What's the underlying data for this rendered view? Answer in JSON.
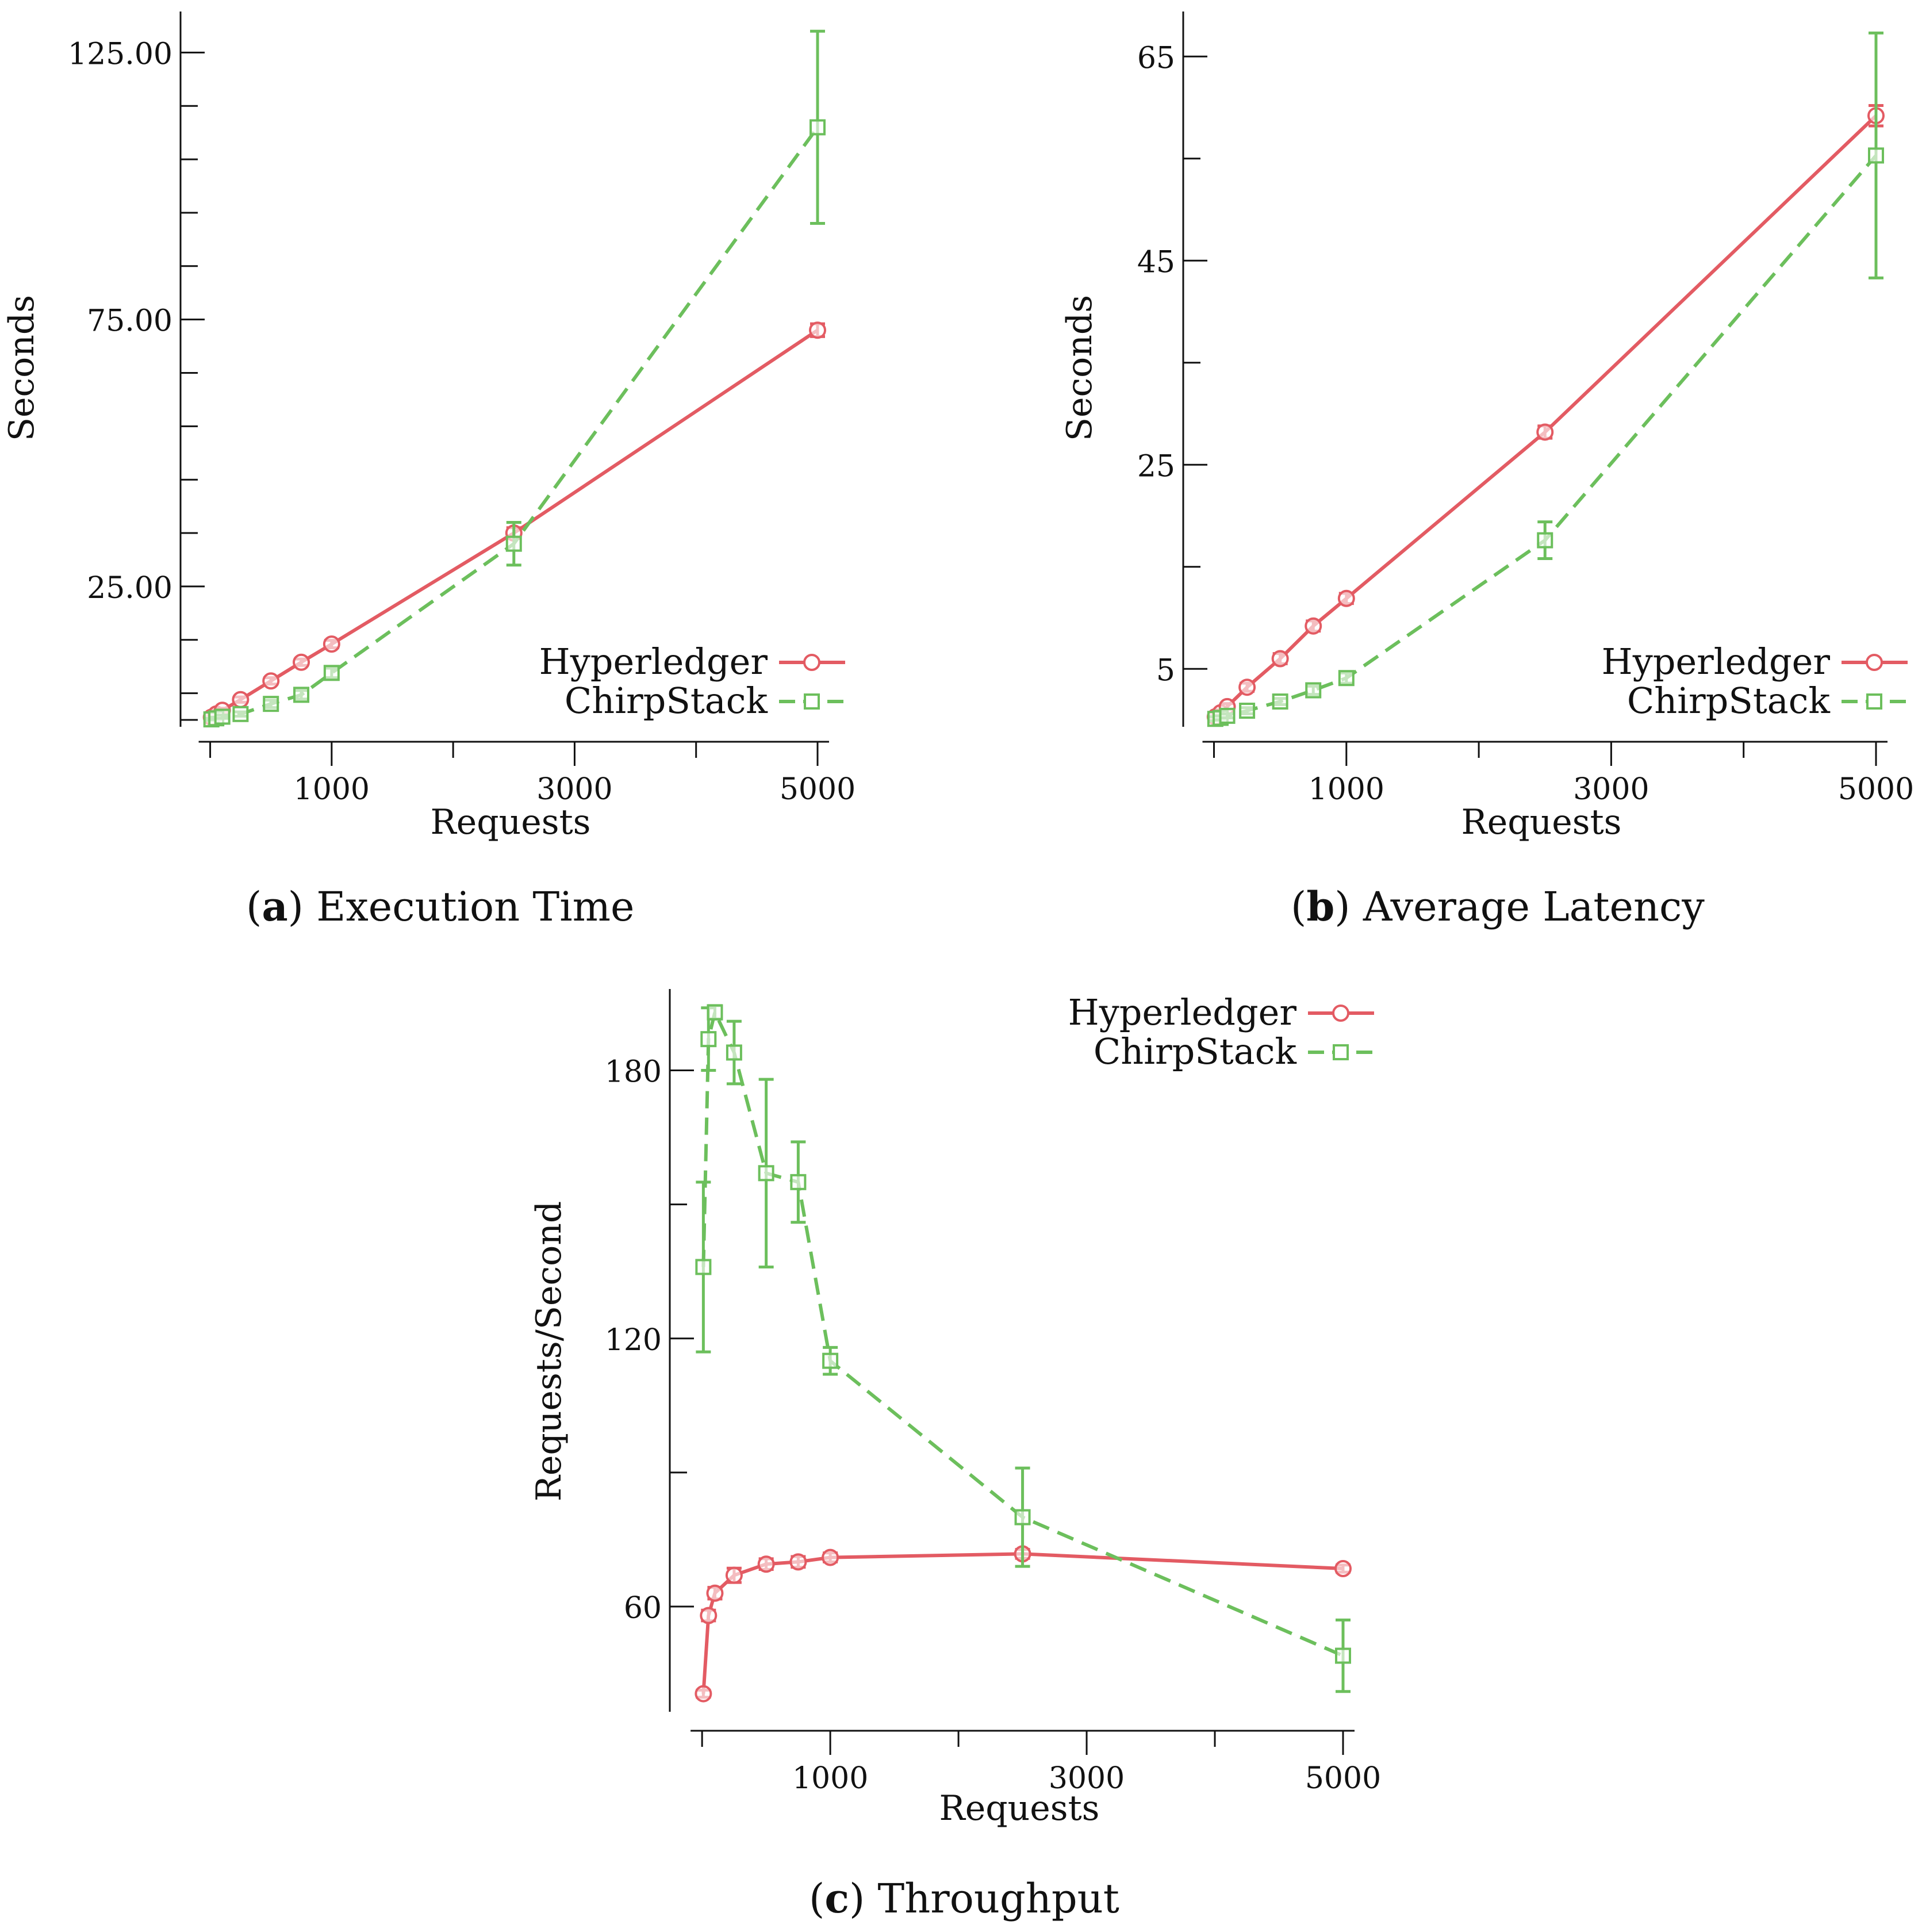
{
  "colors": {
    "hyperledger": "#e35b63",
    "chirpstack": "#6cbf5c",
    "axis": "#111111"
  },
  "captions": [
    {
      "label": "a",
      "text": "Execution Time"
    },
    {
      "label": "b",
      "text": "Average Latency"
    },
    {
      "label": "c",
      "text": "Throughput"
    }
  ],
  "chart_data": [
    {
      "type": "line",
      "title": "Execution Time",
      "xlabel": "Requests",
      "ylabel": "Seconds",
      "xlim": [
        -50,
        5000
      ],
      "ylim": [
        0,
        130
      ],
      "xticks": [
        0,
        1000,
        2000,
        3000,
        4000,
        5000
      ],
      "xtick_labels": [
        "1000",
        "3000",
        "5000"
      ],
      "xtick_label_values": [
        1000,
        3000,
        5000
      ],
      "yticks": [
        0,
        5,
        15,
        25,
        35,
        45,
        55,
        65,
        75,
        85,
        95,
        105,
        115,
        125
      ],
      "ytick_labels": [
        "25.00",
        "75.00",
        "125.00"
      ],
      "ytick_label_values": [
        25,
        75,
        125
      ],
      "legend": "bottom-right",
      "x": [
        10,
        50,
        100,
        250,
        500,
        750,
        1000,
        2500,
        5000
      ],
      "series": [
        {
          "name": "Hyperledger",
          "style": "solid",
          "marker": "circle",
          "values": [
            0.5,
            1.1,
            1.8,
            3.8,
            7.3,
            10.8,
            14.2,
            35.0,
            73.0
          ],
          "errors": [
            0.3,
            0.3,
            0.4,
            0.5,
            0.6,
            0.6,
            0.7,
            1.0,
            1.2
          ]
        },
        {
          "name": "ChirpStack",
          "style": "dashed",
          "marker": "square",
          "values": [
            0.1,
            0.3,
            0.6,
            1.1,
            3.0,
            4.7,
            8.8,
            33.0,
            111.0
          ],
          "errors": [
            0.2,
            0.2,
            0.3,
            0.4,
            0.7,
            0.8,
            0.9,
            4.0,
            18.0
          ]
        }
      ]
    },
    {
      "type": "line",
      "title": "Average Latency",
      "xlabel": "Requests",
      "ylabel": "Seconds",
      "xlim": [
        -50,
        5000
      ],
      "ylim": [
        0,
        68
      ],
      "xticks": [
        0,
        1000,
        2000,
        3000,
        4000,
        5000
      ],
      "xtick_labels": [
        "1000",
        "3000",
        "5000"
      ],
      "xtick_label_values": [
        1000,
        3000,
        5000
      ],
      "yticks": [
        5,
        15,
        25,
        35,
        45,
        55,
        65
      ],
      "ytick_labels": [
        "5",
        "25",
        "45",
        "65"
      ],
      "ytick_label_values": [
        5,
        25,
        45,
        65
      ],
      "legend": "bottom-right",
      "x": [
        10,
        50,
        100,
        250,
        500,
        750,
        1000,
        2500,
        5000
      ],
      "series": [
        {
          "name": "Hyperledger",
          "style": "solid",
          "marker": "circle",
          "values": [
            0.3,
            0.7,
            1.3,
            3.2,
            6.0,
            9.2,
            11.9,
            28.2,
            59.2
          ],
          "errors": [
            0.2,
            0.2,
            0.3,
            0.4,
            0.5,
            0.5,
            0.5,
            0.6,
            1.0
          ]
        },
        {
          "name": "ChirpStack",
          "style": "dashed",
          "marker": "square",
          "values": [
            0.1,
            0.2,
            0.4,
            0.9,
            1.8,
            2.9,
            4.1,
            17.6,
            55.3
          ],
          "errors": [
            0.2,
            0.2,
            0.2,
            0.3,
            0.3,
            0.4,
            0.5,
            1.8,
            12.0
          ]
        }
      ]
    },
    {
      "type": "line",
      "title": "Throughput",
      "xlabel": "Requests",
      "ylabel": "Requests/Second",
      "xlim": [
        -50,
        5000
      ],
      "ylim": [
        38,
        195
      ],
      "xticks": [
        0,
        1000,
        2000,
        3000,
        4000,
        5000
      ],
      "xtick_labels": [
        "1000",
        "3000",
        "5000"
      ],
      "xtick_label_values": [
        1000,
        3000,
        5000
      ],
      "yticks": [
        60,
        90,
        120,
        150,
        180
      ],
      "ytick_labels": [
        "60",
        "120",
        "180"
      ],
      "ytick_label_values": [
        60,
        120,
        180
      ],
      "legend": "top-right",
      "x": [
        10,
        50,
        100,
        250,
        500,
        750,
        1000,
        2500,
        5000
      ],
      "series": [
        {
          "name": "Hyperledger",
          "style": "solid",
          "marker": "circle",
          "values": [
            40.5,
            58.0,
            63.0,
            67.0,
            69.5,
            70.0,
            71.0,
            71.8,
            68.5
          ],
          "errors": [
            0.8,
            1.2,
            1.3,
            1.6,
            1.2,
            1.2,
            1.0,
            1.0,
            0.8
          ]
        },
        {
          "name": "ChirpStack",
          "style": "dashed",
          "marker": "square",
          "values": [
            136.0,
            187.0,
            193.0,
            184.0,
            157.0,
            155.0,
            115.0,
            80.0,
            49.0
          ],
          "errors": [
            19.0,
            7.0,
            1.5,
            7.0,
            21.0,
            9.0,
            3.0,
            11.0,
            8.0
          ]
        }
      ]
    }
  ]
}
